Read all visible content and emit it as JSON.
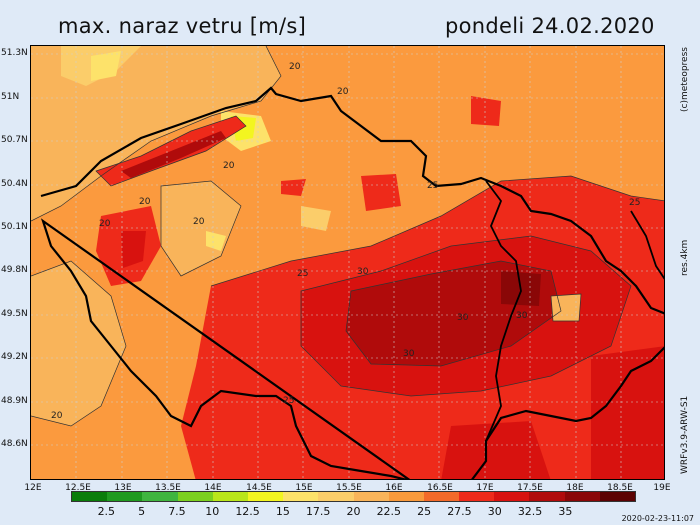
{
  "header": {
    "title": "max. naraz vetru [m/s]",
    "date": "pondeli 24.02.2020"
  },
  "map": {
    "lat_labels": [
      "51.3N",
      "51N",
      "50.7N",
      "50.4N",
      "50.1N",
      "49.8N",
      "49.5N",
      "49.2N",
      "48.9N",
      "48.6N"
    ],
    "lon_labels": [
      "12E",
      "12.5E",
      "13E",
      "13.5E",
      "14E",
      "14.5E",
      "15E",
      "15.5E",
      "16E",
      "16.5E",
      "17E",
      "17.5E",
      "18E",
      "18.5E",
      "19E"
    ],
    "contour_labels": [
      "20",
      "20",
      "20",
      "20",
      "20",
      "20",
      "20",
      "25",
      "25",
      "25",
      "25",
      "30",
      "30",
      "30",
      "30"
    ],
    "colors": {
      "background": "#fb9a3e",
      "border": "#000000"
    }
  },
  "side_labels": {
    "copyright": "(c)meteopress",
    "resolution": "res.4km",
    "model": "WRFv3.9-ARW-S1"
  },
  "legend": {
    "colors": [
      "#0a7d0a",
      "#1f9a1f",
      "#3fb53f",
      "#7bd01f",
      "#b9e61a",
      "#f3f520",
      "#fde26a",
      "#fbcd6a",
      "#f9b45a",
      "#f89a3c",
      "#f36a2a",
      "#ee2a1a",
      "#d8120f",
      "#b00b0b",
      "#8a0707",
      "#5c0303"
    ],
    "ticks": [
      "2.5",
      "5",
      "7.5",
      "10",
      "12.5",
      "15",
      "17.5",
      "20",
      "22.5",
      "25",
      "27.5",
      "30",
      "32.5",
      "35"
    ]
  },
  "footer": {
    "timestamp": "2020-02-23-11:07"
  }
}
